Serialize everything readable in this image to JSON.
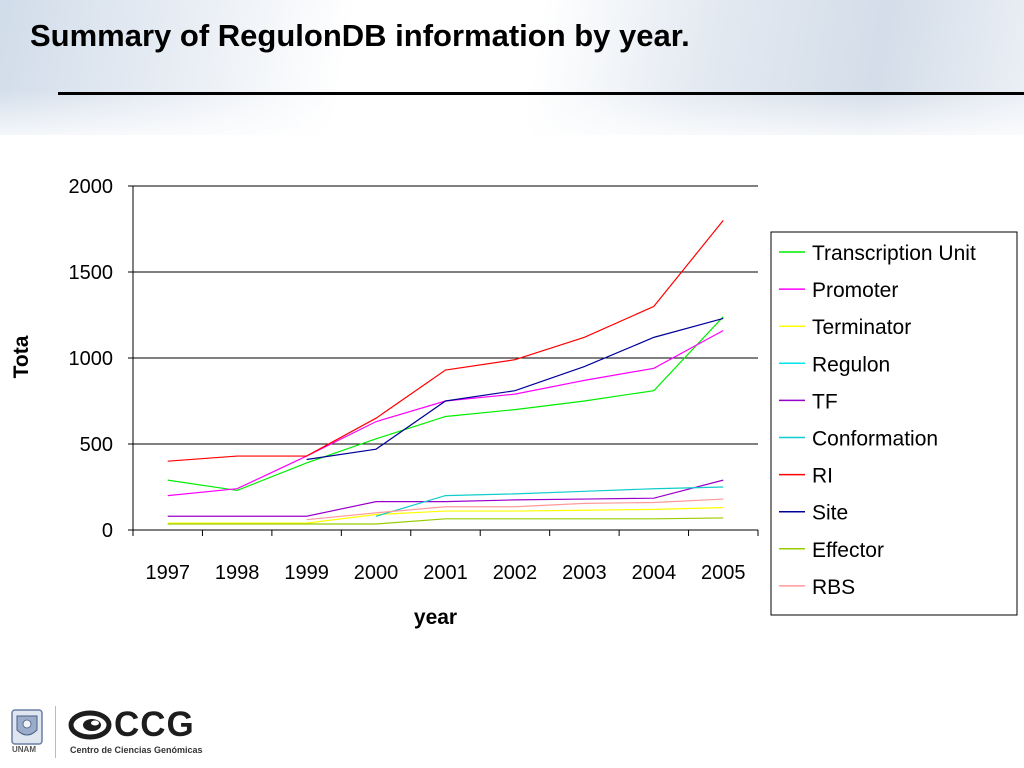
{
  "slide": {
    "title": "Summary of RegulonDB information by year."
  },
  "footer": {
    "unam_label": "UNAM",
    "ccg_label": "CCG",
    "ccg_subtitle": "Centro de Ciencias Genómicas"
  },
  "chart_data": {
    "type": "line",
    "title": "",
    "xlabel": "year",
    "ylabel": "Tota",
    "categories": [
      "1997",
      "1998",
      "1999",
      "2000",
      "2001",
      "2002",
      "2003",
      "2004",
      "2005"
    ],
    "ylim": [
      0,
      2000
    ],
    "yticks": [
      0,
      500,
      1000,
      1500,
      2000
    ],
    "grid": "horizontal",
    "legend_position": "right",
    "series": [
      {
        "name": "Transcription Unit",
        "color": "#00ee00",
        "values": [
          290,
          230,
          390,
          530,
          660,
          700,
          750,
          810,
          1240
        ]
      },
      {
        "name": "Promoter",
        "color": "#ff00ff",
        "values": [
          200,
          240,
          430,
          630,
          750,
          790,
          870,
          940,
          1160
        ]
      },
      {
        "name": "Terminator",
        "color": "#ffff00",
        "values": [
          40,
          40,
          40,
          90,
          110,
          110,
          115,
          120,
          130
        ]
      },
      {
        "name": "Regulon",
        "color": "#00e5ee",
        "values": [
          null,
          null,
          null,
          null,
          null,
          null,
          null,
          null,
          null
        ]
      },
      {
        "name": "TF",
        "color": "#9900cc",
        "values": [
          80,
          80,
          80,
          165,
          165,
          175,
          180,
          185,
          290
        ]
      },
      {
        "name": "Conformation",
        "color": "#11cccc",
        "values": [
          null,
          null,
          null,
          80,
          200,
          210,
          225,
          240,
          250
        ]
      },
      {
        "name": "RI",
        "color": "#ff0000",
        "values": [
          400,
          430,
          430,
          650,
          930,
          990,
          1120,
          1300,
          1800
        ]
      },
      {
        "name": "Site",
        "color": "#000099",
        "values": [
          null,
          null,
          410,
          470,
          750,
          810,
          950,
          1120,
          1230
        ]
      },
      {
        "name": "Effector",
        "color": "#99cc00",
        "values": [
          35,
          35,
          35,
          35,
          65,
          65,
          65,
          65,
          70
        ]
      },
      {
        "name": "RBS",
        "color": "#ff9999",
        "values": [
          null,
          null,
          60,
          100,
          135,
          135,
          155,
          160,
          180
        ]
      }
    ]
  }
}
